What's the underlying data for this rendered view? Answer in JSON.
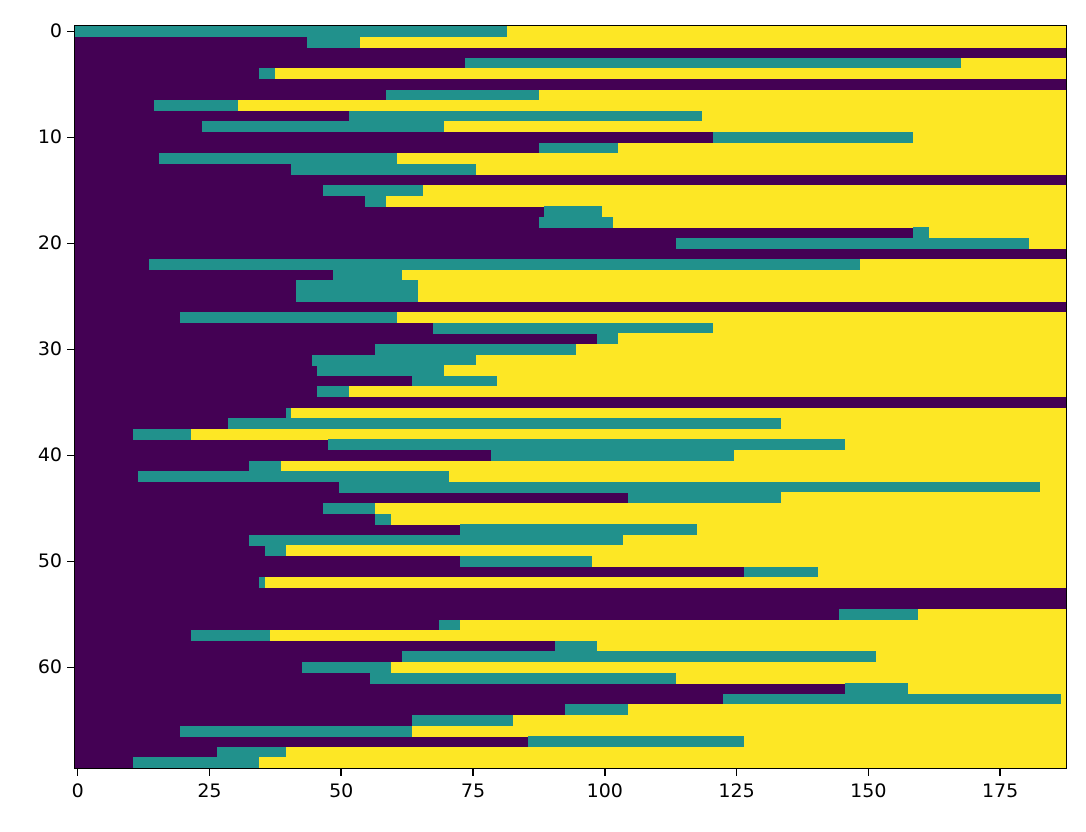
{
  "chart_data": {
    "type": "heatmap",
    "title": "",
    "xlabel": "",
    "ylabel": "",
    "colormap": "viridis",
    "colors": {
      "low": "#440154",
      "mid": "#21918c",
      "high": "#fde725"
    },
    "xlim": [
      -0.5,
      187.5
    ],
    "ylim": [
      69.5,
      -0.5
    ],
    "x_ticks": [
      0,
      25,
      50,
      75,
      100,
      125,
      150,
      175
    ],
    "x_tick_labels": [
      "0",
      "25",
      "50",
      "75",
      "100",
      "125",
      "150",
      "175"
    ],
    "y_ticks": [
      0,
      10,
      20,
      30,
      40,
      50,
      60
    ],
    "y_tick_labels": [
      "0",
      "10",
      "20",
      "30",
      "40",
      "50",
      "60"
    ],
    "n_rows": 70,
    "n_cols": 188,
    "grid": false,
    "legend": "none",
    "description": "Each row: purple (value 0) from column 0 to p, teal (value 1) from p to t, yellow (value 2) from t to end. p==t==188 means an all-purple row.",
    "rows": [
      {
        "p": 0,
        "t": 82
      },
      {
        "p": 44,
        "t": 54
      },
      {
        "p": 188,
        "t": 188
      },
      {
        "p": 74,
        "t": 168
      },
      {
        "p": 35,
        "t": 38
      },
      {
        "p": 188,
        "t": 188
      },
      {
        "p": 59,
        "t": 88
      },
      {
        "p": 15,
        "t": 31
      },
      {
        "p": 52,
        "t": 119
      },
      {
        "p": 24,
        "t": 70
      },
      {
        "p": 121,
        "t": 159
      },
      {
        "p": 88,
        "t": 103
      },
      {
        "p": 16,
        "t": 61
      },
      {
        "p": 41,
        "t": 76
      },
      {
        "p": 188,
        "t": 188
      },
      {
        "p": 47,
        "t": 66
      },
      {
        "p": 55,
        "t": 59
      },
      {
        "p": 89,
        "t": 100
      },
      {
        "p": 88,
        "t": 102
      },
      {
        "p": 159,
        "t": 162
      },
      {
        "p": 114,
        "t": 181
      },
      {
        "p": 188,
        "t": 188
      },
      {
        "p": 14,
        "t": 149
      },
      {
        "p": 49,
        "t": 62
      },
      {
        "p": 42,
        "t": 65
      },
      {
        "p": 42,
        "t": 65
      },
      {
        "p": 188,
        "t": 188
      },
      {
        "p": 20,
        "t": 61
      },
      {
        "p": 68,
        "t": 121
      },
      {
        "p": 99,
        "t": 103
      },
      {
        "p": 57,
        "t": 95
      },
      {
        "p": 45,
        "t": 76
      },
      {
        "p": 46,
        "t": 70
      },
      {
        "p": 64,
        "t": 80
      },
      {
        "p": 46,
        "t": 52
      },
      {
        "p": 188,
        "t": 188
      },
      {
        "p": 40,
        "t": 41
      },
      {
        "p": 29,
        "t": 134
      },
      {
        "p": 11,
        "t": 22
      },
      {
        "p": 48,
        "t": 146
      },
      {
        "p": 79,
        "t": 125
      },
      {
        "p": 33,
        "t": 39
      },
      {
        "p": 12,
        "t": 71
      },
      {
        "p": 50,
        "t": 183
      },
      {
        "p": 105,
        "t": 134
      },
      {
        "p": 47,
        "t": 57
      },
      {
        "p": 57,
        "t": 60
      },
      {
        "p": 73,
        "t": 118
      },
      {
        "p": 33,
        "t": 104
      },
      {
        "p": 36,
        "t": 40
      },
      {
        "p": 73,
        "t": 98
      },
      {
        "p": 127,
        "t": 141
      },
      {
        "p": 35,
        "t": 36
      },
      {
        "p": 188,
        "t": 188
      },
      {
        "p": 188,
        "t": 188
      },
      {
        "p": 145,
        "t": 160
      },
      {
        "p": 69,
        "t": 73
      },
      {
        "p": 22,
        "t": 37
      },
      {
        "p": 91,
        "t": 99
      },
      {
        "p": 62,
        "t": 152
      },
      {
        "p": 43,
        "t": 60
      },
      {
        "p": 56,
        "t": 114
      },
      {
        "p": 146,
        "t": 158
      },
      {
        "p": 123,
        "t": 187
      },
      {
        "p": 93,
        "t": 105
      },
      {
        "p": 64,
        "t": 83
      },
      {
        "p": 20,
        "t": 64
      },
      {
        "p": 86,
        "t": 127
      },
      {
        "p": 27,
        "t": 40
      },
      {
        "p": 11,
        "t": 35
      }
    ]
  }
}
